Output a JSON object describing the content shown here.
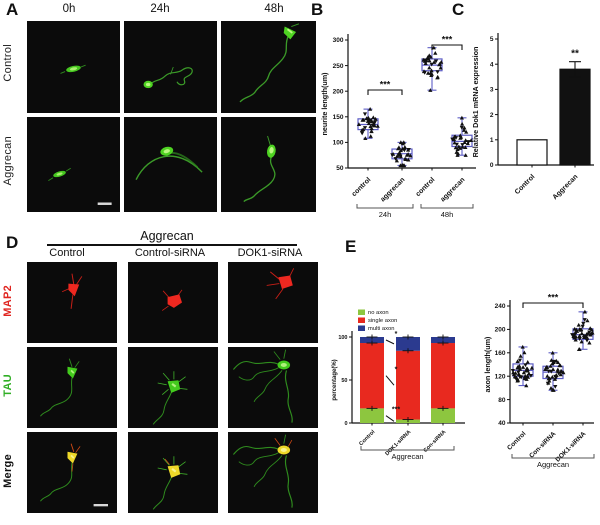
{
  "panels": {
    "A": {
      "label": "A",
      "col_headers": [
        "0h",
        "24h",
        "48h"
      ],
      "row_labels": [
        "Control",
        "Aggrecan"
      ]
    },
    "B": {
      "label": "B"
    },
    "C": {
      "label": "C"
    },
    "D": {
      "label": "D",
      "group_header": "Aggrecan",
      "col_headers": [
        "Control",
        "Control-siRNA",
        "DOK1-siRNA"
      ],
      "row_labels": [
        "MAP2",
        "TAU",
        "Merge"
      ]
    },
    "E": {
      "label": "E"
    }
  },
  "colors": {
    "neuron_green": "#4ed322",
    "map2_red": "#ee2820",
    "merge_yellow": "#eed829",
    "box_blue": "#5d5dc5",
    "bar_green": "#8dc63f",
    "bar_red": "#e8291f",
    "bar_blue": "#2b3a8f"
  },
  "chart_data": [
    {
      "id": "chartB",
      "type": "scatter",
      "title": "",
      "ylabel": "neurite length(um)",
      "ylim": [
        50,
        300
      ],
      "yticks": [
        50,
        100,
        150,
        200,
        250,
        300
      ],
      "categories": [
        "control",
        "aggrecan",
        "control",
        "aggrecan"
      ],
      "groups": [
        {
          "label": "24h",
          "span": [
            0,
            1
          ]
        },
        {
          "label": "48h",
          "span": [
            2,
            3
          ]
        }
      ],
      "box_stats": [
        {
          "median": 135,
          "q1": 125,
          "q3": 146,
          "min": 108,
          "max": 165,
          "n": 32
        },
        {
          "median": 78,
          "q1": 68,
          "q3": 87,
          "min": 55,
          "max": 100,
          "n": 32
        },
        {
          "median": 251,
          "q1": 240,
          "q3": 263,
          "min": 202,
          "max": 285,
          "n": 32
        },
        {
          "median": 102,
          "q1": 92,
          "q3": 114,
          "min": 75,
          "max": 148,
          "n": 32
        }
      ],
      "significance": [
        {
          "between": [
            0,
            1
          ],
          "label": "***"
        },
        {
          "between": [
            2,
            3
          ],
          "label": "***"
        }
      ],
      "marker_color": "#111111",
      "box_color": "#5d5dc5"
    },
    {
      "id": "chartC",
      "type": "bar",
      "title": "",
      "ylabel": "Relative Dok1 mRNA expression",
      "ylim": [
        0,
        5
      ],
      "yticks": [
        0,
        1,
        2,
        3,
        4,
        5
      ],
      "categories": [
        "Control",
        "Aggrecan"
      ],
      "values": [
        1.0,
        3.8
      ],
      "errors": [
        0,
        0.3
      ],
      "bar_colors": [
        "#ffffff",
        "#111111"
      ],
      "significance": [
        {
          "on": 1,
          "label": "**"
        }
      ]
    },
    {
      "id": "chartE1",
      "type": "stacked-bar",
      "title": "",
      "ylabel": "percentage(%)",
      "ylim": [
        0,
        100
      ],
      "yticks": [
        0,
        50,
        100
      ],
      "categories": [
        "Control",
        "DOK1-siRNA",
        "Con-siRNA"
      ],
      "series": [
        {
          "name": "no axon",
          "color": "#8dc63f",
          "values": [
            17,
            4,
            17
          ]
        },
        {
          "name": "single axon",
          "color": "#e8291f",
          "values": [
            76,
            80,
            76
          ]
        },
        {
          "name": "multi axon",
          "color": "#2b3a8f",
          "values": [
            7,
            16,
            7
          ]
        }
      ],
      "groups": [
        {
          "label": "Aggrecan",
          "span": [
            0,
            2
          ]
        }
      ],
      "significance": [
        {
          "between": [
            0,
            1
          ],
          "segment": "multi axon",
          "label": "*"
        },
        {
          "between": [
            0,
            1
          ],
          "segment": "single axon",
          "label": "*"
        },
        {
          "between": [
            0,
            1
          ],
          "segment": "no axon",
          "label": "***"
        }
      ],
      "legend_position": "top-left"
    },
    {
      "id": "chartE2",
      "type": "scatter",
      "title": "",
      "ylabel": "axon length(um)",
      "ylim": [
        40,
        240
      ],
      "yticks": [
        40,
        80,
        120,
        160,
        200,
        240
      ],
      "categories": [
        "Control",
        "Con-siRNA",
        "DOK1-siRNA"
      ],
      "groups": [
        {
          "label": "Aggrecan",
          "span": [
            0,
            2
          ]
        }
      ],
      "box_stats": [
        {
          "median": 130,
          "q1": 120,
          "q3": 141,
          "min": 104,
          "max": 170,
          "n": 40
        },
        {
          "median": 127,
          "q1": 116,
          "q3": 137,
          "min": 96,
          "max": 160,
          "n": 40
        },
        {
          "median": 191,
          "q1": 183,
          "q3": 201,
          "min": 166,
          "max": 230,
          "n": 40
        }
      ],
      "significance": [
        {
          "between": [
            0,
            2
          ],
          "label": "***"
        }
      ],
      "marker_color": "#111111",
      "box_color": "#5d5dc5"
    }
  ]
}
